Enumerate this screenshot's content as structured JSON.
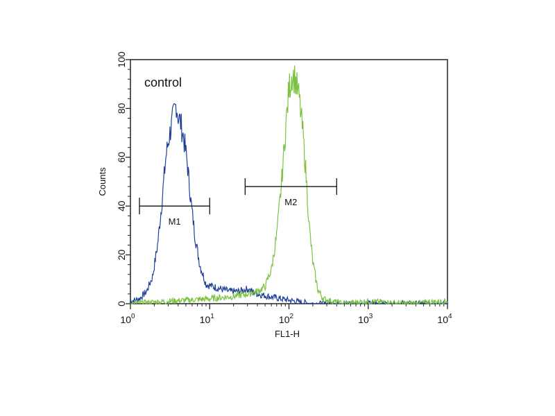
{
  "chart_data": {
    "type": "line",
    "title": "",
    "xlabel": "FL1-H",
    "ylabel": "Counts",
    "xscale": "log",
    "xlim": [
      1,
      10000
    ],
    "ylim": [
      0,
      100
    ],
    "x_ticks": [
      {
        "base": "10",
        "exp": "0"
      },
      {
        "base": "10",
        "exp": "1"
      },
      {
        "base": "10",
        "exp": "2"
      },
      {
        "base": "10",
        "exp": "3"
      },
      {
        "base": "10",
        "exp": "4"
      }
    ],
    "y_ticks": [
      "0",
      "20",
      "40",
      "60",
      "80",
      "100"
    ],
    "annotation": "control",
    "legend": "none",
    "grid": false,
    "series": [
      {
        "color": "#1f3f99",
        "x": [
          1.0,
          1.3,
          1.6,
          1.9,
          2.2,
          2.5,
          2.8,
          3.1,
          3.4,
          3.6,
          3.8,
          4.0,
          4.3,
          4.7,
          5.2,
          5.8,
          6.5,
          7.5,
          9,
          11,
          14,
          18,
          23,
          30,
          40,
          55,
          80,
          120,
          200,
          400,
          1000,
          10000
        ],
        "y": [
          1,
          2,
          5,
          11,
          24,
          42,
          60,
          69,
          75,
          79,
          82,
          77,
          74,
          68,
          58,
          42,
          28,
          16,
          8,
          7,
          6,
          5,
          5,
          6,
          4,
          3,
          2,
          1,
          0,
          0,
          0,
          0
        ]
      },
      {
        "color": "#7cc242",
        "x": [
          1,
          3,
          10,
          20,
          30,
          40,
          50,
          60,
          70,
          80,
          90,
          100,
          110,
          120,
          135,
          150,
          165,
          180,
          200,
          230,
          270,
          350,
          500,
          1000,
          3000,
          10000
        ],
        "y": [
          0,
          1,
          2,
          3,
          4,
          5,
          7,
          14,
          28,
          48,
          70,
          88,
          94,
          92,
          84,
          70,
          52,
          32,
          17,
          6,
          2,
          1,
          0,
          1,
          0,
          1
        ]
      }
    ],
    "markers": [
      {
        "label": "M1",
        "x_start": 1.3,
        "x_end": 10,
        "y": 40
      },
      {
        "label": "M2",
        "x_start": 28,
        "x_end": 400,
        "y": 48
      }
    ]
  }
}
